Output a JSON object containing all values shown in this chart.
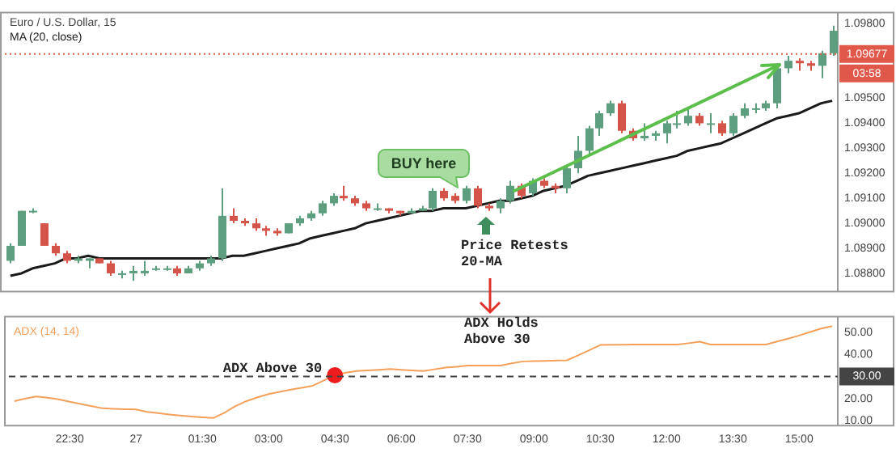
{
  "chart_data": [
    {
      "type": "candlestick",
      "title": "Euro / U.S. Dollar, 15",
      "legend": "top left",
      "tick_labels": "y",
      "categories": [
        null,
        null,
        null,
        null,
        null,
        null,
        null,
        null,
        null,
        null,
        null,
        null,
        null,
        null,
        null,
        null,
        null,
        null,
        null,
        null,
        null,
        null,
        null,
        null,
        null,
        null,
        null,
        null,
        null,
        null,
        null,
        null,
        null,
        null,
        null,
        null,
        null,
        null,
        null,
        null,
        null,
        null,
        null,
        null,
        null,
        null,
        null,
        null,
        null,
        null,
        null,
        null,
        null,
        null,
        null,
        null,
        null,
        null,
        null,
        null,
        null,
        null,
        null,
        null,
        null,
        null,
        null,
        null,
        null,
        null,
        null,
        null,
        null,
        null,
        null
      ],
      "ohlc": [
        [
          1.0885,
          1.0892,
          1.0884,
          1.0891
        ],
        [
          1.0891,
          1.0905,
          1.0891,
          1.0905
        ],
        [
          1.0905,
          1.0906,
          1.0904,
          1.0905
        ],
        [
          1.09,
          1.09,
          1.0891,
          1.0891
        ],
        [
          1.0891,
          1.0892,
          1.0887,
          1.0888
        ],
        [
          1.0888,
          1.0889,
          1.0884,
          1.0885
        ],
        [
          1.0885,
          1.0887,
          1.0884,
          1.0886
        ],
        [
          1.0885,
          1.0886,
          1.0882,
          1.0886
        ],
        [
          1.0886,
          1.0886,
          1.0884,
          1.0884
        ],
        [
          1.0884,
          1.0885,
          1.0879,
          1.088
        ],
        [
          1.088,
          1.0881,
          1.0878,
          1.088
        ],
        [
          1.088,
          1.0883,
          1.0877,
          1.0881
        ],
        [
          1.088,
          1.0885,
          1.0879,
          1.0881
        ],
        [
          1.0882,
          1.0883,
          1.0881,
          1.0882
        ],
        [
          1.0882,
          1.0883,
          1.0881,
          1.0882
        ],
        [
          1.0882,
          1.0883,
          1.0879,
          1.088
        ],
        [
          1.088,
          1.0883,
          1.088,
          1.0882
        ],
        [
          1.0882,
          1.0885,
          1.0881,
          1.0884
        ],
        [
          1.0884,
          1.0887,
          1.0883,
          1.0886
        ],
        [
          1.0886,
          1.0914,
          1.0885,
          1.0903
        ],
        [
          1.0903,
          1.0906,
          1.09,
          1.0901
        ],
        [
          1.0901,
          1.0902,
          1.0899,
          1.09
        ],
        [
          1.09,
          1.0902,
          1.0897,
          1.0898
        ],
        [
          1.0898,
          1.0899,
          1.0895,
          1.0897
        ],
        [
          1.0897,
          1.0898,
          1.0895,
          1.0896
        ],
        [
          1.0896,
          1.09,
          1.0896,
          1.09
        ],
        [
          1.09,
          1.0903,
          1.0899,
          1.0902
        ],
        [
          1.0902,
          1.0905,
          1.0901,
          1.0904
        ],
        [
          1.0904,
          1.0909,
          1.0903,
          1.0908
        ],
        [
          1.0908,
          1.0912,
          1.0907,
          1.0911
        ],
        [
          1.0911,
          1.0915,
          1.0909,
          1.091
        ],
        [
          1.091,
          1.0911,
          1.0907,
          1.0908
        ],
        [
          1.0908,
          1.0909,
          1.0905,
          1.0906
        ],
        [
          1.0906,
          1.0908,
          1.0905,
          1.0906
        ],
        [
          1.0906,
          1.0906,
          1.0904,
          1.0905
        ],
        [
          1.0905,
          1.0905,
          1.0903,
          1.0904
        ],
        [
          1.0904,
          1.0906,
          1.0904,
          1.0905
        ],
        [
          1.0905,
          1.0907,
          1.0905,
          1.0906
        ],
        [
          1.0906,
          1.0914,
          1.0905,
          1.0913
        ],
        [
          1.0913,
          1.0914,
          1.0909,
          1.091
        ],
        [
          1.0911,
          1.0912,
          1.0908,
          1.0909
        ],
        [
          1.0909,
          1.0915,
          1.0908,
          1.0914
        ],
        [
          1.0914,
          1.0915,
          1.0906,
          1.0907
        ],
        [
          1.0907,
          1.0908,
          1.0905,
          1.0906
        ],
        [
          1.0906,
          1.091,
          1.0904,
          1.0909
        ],
        [
          1.0909,
          1.0917,
          1.0908,
          1.0915
        ],
        [
          1.0915,
          1.0916,
          1.091,
          1.0911
        ],
        [
          1.0912,
          1.0918,
          1.0911,
          1.0917
        ],
        [
          1.0917,
          1.0918,
          1.0914,
          1.0915
        ],
        [
          1.0915,
          1.0916,
          1.0912,
          1.0914
        ],
        [
          1.0914,
          1.0923,
          1.0912,
          1.0922
        ],
        [
          1.0922,
          1.0935,
          1.092,
          1.0929
        ],
        [
          1.0929,
          1.0939,
          1.0927,
          1.0938
        ],
        [
          1.0938,
          1.0945,
          1.0935,
          1.0944
        ],
        [
          1.0944,
          1.0949,
          1.0943,
          1.0948
        ],
        [
          1.0948,
          1.0949,
          1.0936,
          1.0937
        ],
        [
          1.0937,
          1.0938,
          1.0933,
          1.0934
        ],
        [
          1.0934,
          1.094,
          1.0933,
          1.0935
        ],
        [
          1.0935,
          1.0937,
          1.0933,
          1.0936
        ],
        [
          1.0936,
          1.0941,
          1.0932,
          1.094
        ],
        [
          1.094,
          1.0945,
          1.0938,
          1.094
        ],
        [
          1.094,
          1.0946,
          1.0939,
          1.0943
        ],
        [
          1.0943,
          1.0944,
          1.0939,
          1.094
        ],
        [
          1.094,
          1.0944,
          1.0936,
          1.094
        ],
        [
          1.094,
          1.0941,
          1.0935,
          1.0936
        ],
        [
          1.0936,
          1.0944,
          1.0935,
          1.0943
        ],
        [
          1.0943,
          1.0948,
          1.0942,
          1.0946
        ],
        [
          1.0946,
          1.0948,
          1.0944,
          1.0946
        ],
        [
          1.0946,
          1.0949,
          1.0945,
          1.0948
        ],
        [
          1.0948,
          1.0963,
          1.0946,
          1.0962
        ],
        [
          1.0962,
          1.0967,
          1.096,
          1.0965
        ],
        [
          1.0965,
          1.0966,
          1.0961,
          1.0964
        ],
        [
          1.0964,
          1.0965,
          1.0961,
          1.0963
        ],
        [
          1.0963,
          1.0969,
          1.0958,
          1.0968
        ],
        [
          1.0968,
          1.0979,
          1.0967,
          1.0977
        ]
      ],
      "colors": [
        "#5d9e7e",
        "#5d9e7e",
        "#5d9e7e",
        "#d5544a",
        "#d5544a",
        "#d5544a",
        "#5d9e7e",
        "#5d9e7e",
        "#d5544a",
        "#d5544a",
        "#5d9e7e",
        "#5d9e7e",
        "#5d9e7e",
        "#5d9e7e",
        "#5d9e7e",
        "#d5544a",
        "#5d9e7e",
        "#5d9e7e",
        "#5d9e7e",
        "#5d9e7e",
        "#d5544a",
        "#d5544a",
        "#d5544a",
        "#d5544a",
        "#d5544a",
        "#5d9e7e",
        "#5d9e7e",
        "#5d9e7e",
        "#5d9e7e",
        "#5d9e7e",
        "#d5544a",
        "#d5544a",
        "#d5544a",
        "#5d9e7e",
        "#d5544a",
        "#d5544a",
        "#5d9e7e",
        "#5d9e7e",
        "#5d9e7e",
        "#d5544a",
        "#d5544a",
        "#5d9e7e",
        "#d5544a",
        "#d5544a",
        "#5d9e7e",
        "#5d9e7e",
        "#d5544a",
        "#5d9e7e",
        "#d5544a",
        "#d5544a",
        "#5d9e7e",
        "#5d9e7e",
        "#5d9e7e",
        "#5d9e7e",
        "#5d9e7e",
        "#d5544a",
        "#d5544a",
        "#5d9e7e",
        "#5d9e7e",
        "#5d9e7e",
        "#5d9e7e",
        "#5d9e7e",
        "#d5544a",
        "#5d9e7e",
        "#d5544a",
        "#5d9e7e",
        "#5d9e7e",
        "#5d9e7e",
        "#5d9e7e",
        "#5d9e7e",
        "#5d9e7e",
        "#d5544a",
        "#d5544a",
        "#5d9e7e",
        "#5d9e7e"
      ],
      "series": [
        {
          "name": "MA (20, close)",
          "type": "line",
          "color": "#1a1a1a",
          "values": [
            1.0879,
            1.088,
            1.0882,
            1.0883,
            1.0884,
            1.0886,
            1.0886,
            1.0887,
            1.0886,
            1.0886,
            1.0886,
            1.0886,
            1.0886,
            1.0886,
            1.0886,
            1.0886,
            1.0886,
            1.0886,
            1.0886,
            1.0886,
            1.0887,
            1.0887,
            1.0888,
            1.0889,
            1.089,
            1.0891,
            1.0892,
            1.0894,
            1.0895,
            1.0896,
            1.0897,
            1.0898,
            1.09,
            1.0901,
            1.0902,
            1.0903,
            1.0904,
            1.0905,
            1.0905,
            1.0906,
            1.0906,
            1.0906,
            1.0907,
            1.0908,
            1.0909,
            1.0909,
            1.091,
            1.0911,
            1.0913,
            1.0914,
            1.0915,
            1.0917,
            1.0919,
            1.092,
            1.0921,
            1.0922,
            1.0923,
            1.0924,
            1.0925,
            1.0926,
            1.0927,
            1.0929,
            1.093,
            1.0931,
            1.0932,
            1.0934,
            1.0936,
            1.0938,
            1.094,
            1.0942,
            1.0943,
            1.0944,
            1.0946,
            1.0948,
            1.0949
          ]
        }
      ],
      "ylim": [
        1.0873,
        1.0984
      ],
      "yticks": [
        {
          "value": 1.088,
          "label": "1.08800"
        },
        {
          "value": 1.089,
          "label": "1.08900"
        },
        {
          "value": 1.09,
          "label": "1.09000"
        },
        {
          "value": 1.091,
          "label": "1.09100"
        },
        {
          "value": 1.092,
          "label": "1.09200"
        },
        {
          "value": 1.093,
          "label": "1.09300"
        },
        {
          "value": 1.094,
          "label": "1.09400"
        },
        {
          "value": 1.095,
          "label": "1.09500"
        },
        {
          "value": 1.098,
          "label": "1.09800"
        }
      ],
      "ref_lines": [
        {
          "axis": "y",
          "value": 1.09677,
          "label": "1.09677",
          "color": "#e0584a",
          "line_style": "dotted"
        }
      ],
      "annotations": [
        "BUY here",
        "Price Retests 20-MA",
        "03:58"
      ]
    },
    {
      "type": "line",
      "legend": "top left",
      "categories": [
        null,
        null,
        null,
        null,
        null,
        "22:30",
        null,
        null,
        null,
        null,
        null,
        "27",
        null,
        null,
        null,
        null,
        null,
        "01:30",
        null,
        null,
        null,
        null,
        null,
        "03:00",
        null,
        null,
        null,
        null,
        null,
        "04:30",
        null,
        null,
        null,
        null,
        null,
        "06:00",
        null,
        null,
        null,
        null,
        null,
        "07:30",
        null,
        null,
        null,
        null,
        null,
        "09:00",
        null,
        null,
        null,
        null,
        null,
        "10:30",
        null,
        null,
        null,
        null,
        null,
        "12:00",
        null,
        null,
        null,
        null,
        null,
        "13:30",
        null,
        null,
        null,
        null,
        null,
        "15:00",
        null,
        null,
        null
      ],
      "series": [
        {
          "name": "ADX (14, 14)",
          "color": "#f5a05a",
          "values": [
            18.8,
            20,
            20.9,
            20.3,
            19.6,
            18.5,
            17.5,
            16.5,
            15.5,
            15.3,
            15.1,
            15.0,
            13.9,
            13.3,
            12.7,
            12.2,
            11.8,
            11.4,
            11.1,
            13.5,
            16.5,
            18.8,
            20.5,
            22.0,
            23.0,
            24.0,
            24.9,
            25.8,
            28.2,
            30.6,
            31.8,
            32.5,
            32.8,
            33.1,
            33.4,
            33.1,
            32.8,
            32.5,
            33.3,
            34.1,
            34.5,
            35.0,
            35.0,
            35.0,
            35.0,
            36.0,
            36.9,
            37.0,
            37.1,
            37.3,
            37.4,
            39.7,
            42.0,
            44.4,
            44.5,
            44.5,
            44.6,
            44.6,
            44.6,
            44.6,
            44.6,
            45.2,
            45.9,
            44.6,
            44.6,
            44.6,
            44.6,
            44.6,
            44.6,
            46.0,
            47.3,
            48.7,
            50.3,
            51.9,
            53.0
          ]
        },
        {
          "type": "scatter",
          "color": "#ee1c1c",
          "x": [
            "04:30"
          ],
          "values": [
            30.6
          ]
        }
      ],
      "ylim": [
        8,
        57
      ],
      "yticks": [
        {
          "value": 10,
          "label": "10.00"
        },
        {
          "value": 20,
          "label": "20.00"
        },
        {
          "value": 40,
          "label": "40.00"
        },
        {
          "value": 50,
          "label": "50.00"
        }
      ],
      "ref_lines": [
        {
          "axis": "y",
          "value": 30,
          "label": "30.00",
          "color": "#444444",
          "line_style": "dashed"
        }
      ],
      "annotations": [
        {
          "text": "ADX Above 30",
          "x": "04:30",
          "y": 30.6
        },
        "ADX Holds Above 30"
      ]
    }
  ]
}
